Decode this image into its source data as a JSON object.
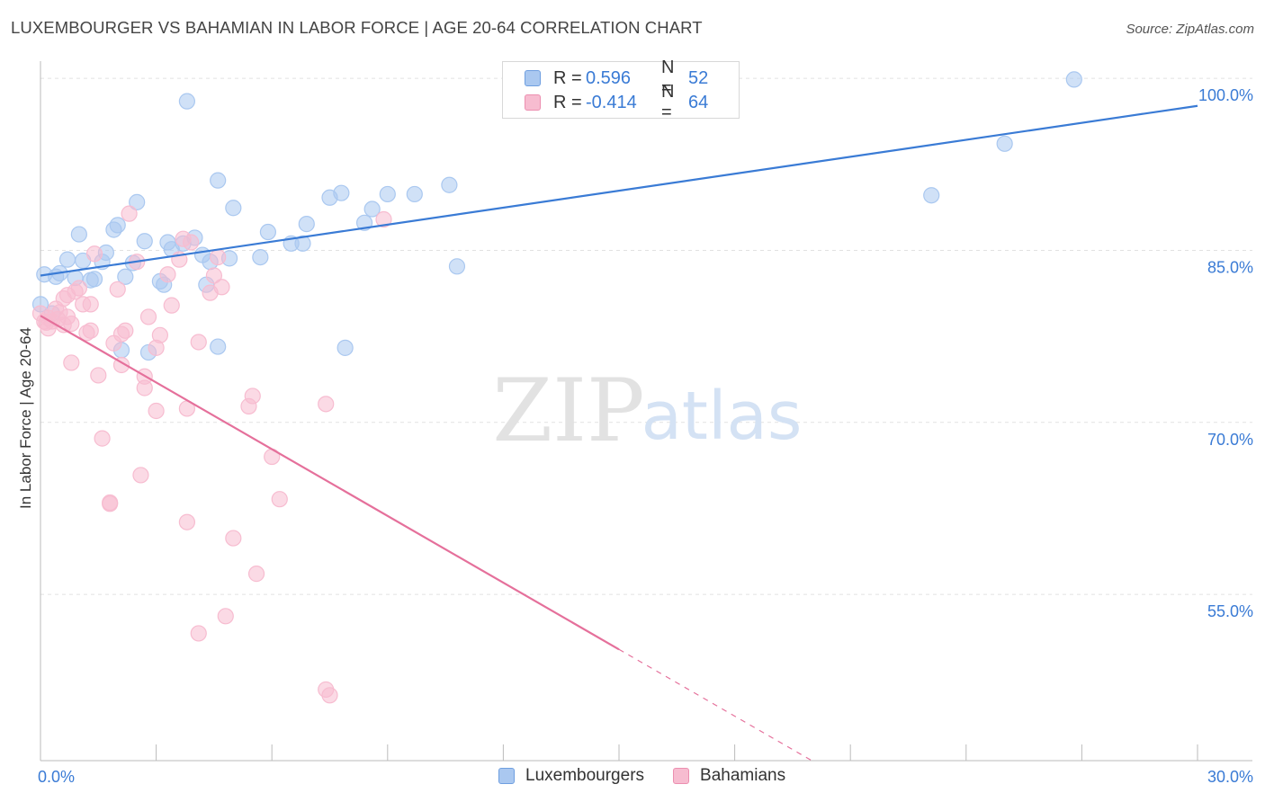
{
  "title": "LUXEMBOURGER VS BAHAMIAN IN LABOR FORCE | AGE 20-64 CORRELATION CHART",
  "source": "Source: ZipAtlas.com",
  "watermark": {
    "zip": "ZIP",
    "atlas": "atlas"
  },
  "legend": {
    "r_label": "R =",
    "n_label": "N =",
    "series": [
      {
        "name": "Luxembourgers",
        "r": "0.596",
        "n": "52",
        "fill": "#aac8f0",
        "stroke": "#6f9fe0"
      },
      {
        "name": "Bahamians",
        "r": "-0.414",
        "n": "64",
        "fill": "#f7bcd0",
        "stroke": "#ec8fb0"
      }
    ]
  },
  "chart_data": {
    "type": "scatter",
    "title": "LUXEMBOURGER VS BAHAMIAN IN LABOR FORCE | AGE 20-64 CORRELATION CHART",
    "xlabel": "",
    "ylabel": "In Labor Force | Age 20-64",
    "xlim": [
      0,
      30
    ],
    "ylim": [
      40.5,
      101.5
    ],
    "x_tick_labels": [
      "0.0%",
      "30.0%"
    ],
    "y_ticks": [
      {
        "value": 100,
        "label": "100.0%"
      },
      {
        "value": 85,
        "label": "85.0%"
      },
      {
        "value": 70,
        "label": "70.0%"
      },
      {
        "value": 55,
        "label": "55.0%"
      }
    ],
    "series": [
      {
        "name": "Luxembourgers",
        "color": "#3a7bd5",
        "fill": "#aac8f0",
        "trend": {
          "x0": 0,
          "y0": 82.8,
          "x1": 30,
          "y1": 97.6,
          "dashed_from": null
        },
        "points": [
          [
            0.0,
            80.3
          ],
          [
            0.1,
            82.9
          ],
          [
            0.4,
            82.7
          ],
          [
            0.5,
            83.0
          ],
          [
            0.7,
            84.2
          ],
          [
            0.9,
            82.6
          ],
          [
            1.0,
            86.4
          ],
          [
            1.1,
            84.1
          ],
          [
            1.3,
            82.4
          ],
          [
            1.4,
            82.5
          ],
          [
            1.6,
            84.0
          ],
          [
            1.7,
            84.8
          ],
          [
            1.9,
            86.8
          ],
          [
            2.0,
            87.2
          ],
          [
            2.1,
            76.3
          ],
          [
            2.2,
            82.7
          ],
          [
            2.4,
            83.9
          ],
          [
            2.5,
            89.2
          ],
          [
            2.7,
            85.8
          ],
          [
            2.8,
            76.1
          ],
          [
            3.1,
            82.3
          ],
          [
            3.2,
            82.0
          ],
          [
            3.3,
            85.7
          ],
          [
            3.4,
            85.1
          ],
          [
            3.7,
            85.6
          ],
          [
            3.8,
            98.0
          ],
          [
            4.0,
            86.1
          ],
          [
            4.2,
            84.6
          ],
          [
            4.3,
            82.0
          ],
          [
            4.4,
            84.0
          ],
          [
            4.6,
            76.6
          ],
          [
            4.6,
            91.1
          ],
          [
            4.9,
            84.3
          ],
          [
            5.0,
            88.7
          ],
          [
            5.7,
            84.4
          ],
          [
            5.9,
            86.6
          ],
          [
            6.5,
            85.6
          ],
          [
            6.8,
            85.6
          ],
          [
            6.9,
            87.3
          ],
          [
            7.5,
            89.6
          ],
          [
            7.8,
            90.0
          ],
          [
            7.9,
            76.5
          ],
          [
            8.4,
            87.4
          ],
          [
            8.6,
            88.6
          ],
          [
            9.0,
            89.9
          ],
          [
            9.7,
            89.9
          ],
          [
            10.6,
            90.7
          ],
          [
            10.8,
            83.6
          ],
          [
            23.1,
            89.8
          ],
          [
            25.0,
            94.3
          ],
          [
            26.8,
            99.9
          ],
          [
            0.3,
            79.5
          ]
        ]
      },
      {
        "name": "Bahamians",
        "color": "#e5709b",
        "fill": "#f7bcd0",
        "trend": {
          "x0": 0,
          "y0": 79.3,
          "x1": 20,
          "y1": 40.5,
          "dashed_from": 15
        },
        "points": [
          [
            0.0,
            79.5
          ],
          [
            0.1,
            78.8
          ],
          [
            0.2,
            79.1
          ],
          [
            0.2,
            78.2
          ],
          [
            0.3,
            78.8
          ],
          [
            0.4,
            79.9
          ],
          [
            0.5,
            79.6
          ],
          [
            0.6,
            78.5
          ],
          [
            0.6,
            80.8
          ],
          [
            0.7,
            81.1
          ],
          [
            0.7,
            79.2
          ],
          [
            0.8,
            75.2
          ],
          [
            0.8,
            78.6
          ],
          [
            0.9,
            81.4
          ],
          [
            1.0,
            81.7
          ],
          [
            1.1,
            80.3
          ],
          [
            1.2,
            77.8
          ],
          [
            1.3,
            80.3
          ],
          [
            1.3,
            78.0
          ],
          [
            1.4,
            84.7
          ],
          [
            1.5,
            74.1
          ],
          [
            1.6,
            68.6
          ],
          [
            1.8,
            63.0
          ],
          [
            1.8,
            62.9
          ],
          [
            1.9,
            76.9
          ],
          [
            2.0,
            81.6
          ],
          [
            2.1,
            77.7
          ],
          [
            2.1,
            75.0
          ],
          [
            2.2,
            78.0
          ],
          [
            2.3,
            88.2
          ],
          [
            2.5,
            84.0
          ],
          [
            2.6,
            65.4
          ],
          [
            2.7,
            73.0
          ],
          [
            2.7,
            74.0
          ],
          [
            2.8,
            79.2
          ],
          [
            3.0,
            76.5
          ],
          [
            3.0,
            71.0
          ],
          [
            3.1,
            77.6
          ],
          [
            3.3,
            82.9
          ],
          [
            3.4,
            80.2
          ],
          [
            3.6,
            84.2
          ],
          [
            3.7,
            86.0
          ],
          [
            3.8,
            71.2
          ],
          [
            3.8,
            61.3
          ],
          [
            3.9,
            85.7
          ],
          [
            4.1,
            51.6
          ],
          [
            4.1,
            77.0
          ],
          [
            4.4,
            81.3
          ],
          [
            4.5,
            82.8
          ],
          [
            4.6,
            84.4
          ],
          [
            4.7,
            81.8
          ],
          [
            4.8,
            53.1
          ],
          [
            5.0,
            59.9
          ],
          [
            5.4,
            71.4
          ],
          [
            5.5,
            72.3
          ],
          [
            5.6,
            56.8
          ],
          [
            6.0,
            67.0
          ],
          [
            6.2,
            63.3
          ],
          [
            7.4,
            71.6
          ],
          [
            7.4,
            46.7
          ],
          [
            7.5,
            46.2
          ],
          [
            8.9,
            87.7
          ],
          [
            0.15,
            78.7
          ],
          [
            0.45,
            79.0
          ]
        ]
      }
    ]
  }
}
